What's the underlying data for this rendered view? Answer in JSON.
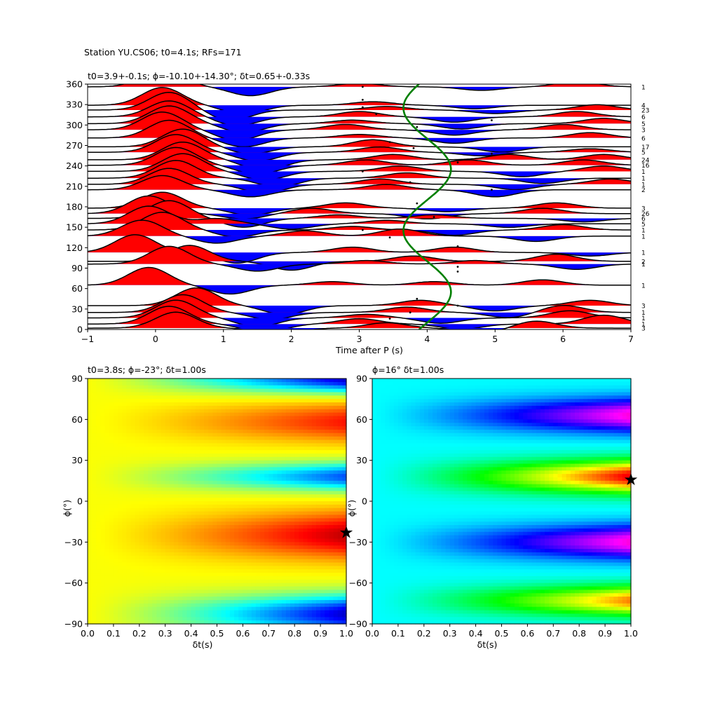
{
  "suptitle": "Station YU.CS06; t0=4.1s; RFs=171",
  "chart_data": [
    {
      "type": "line",
      "title": "t0=3.9+-0.1s; ϕ=-10.10+-14.30°; δt=0.65+-0.33s",
      "xlabel": "Time after P (s)",
      "ylabel": "",
      "xlim": [
        -1,
        7
      ],
      "ylim": [
        0,
        360
      ],
      "xticks": [
        "−1",
        "0",
        "1",
        "2",
        "3",
        "4",
        "5",
        "6",
        "7"
      ],
      "yticks": [
        "0",
        "30",
        "60",
        "90",
        "120",
        "150",
        "180",
        "210",
        "240",
        "270",
        "300",
        "330",
        "360"
      ],
      "positive_fill_color": "#ff0000",
      "negative_fill_color": "#0000ff",
      "trace_color": "#000000",
      "curve_color": "#008000",
      "traces": [
        {
          "baz": 2,
          "count": "3",
          "peaks": [
            [
              0.3,
              0.9
            ],
            [
              1.8,
              -0.4
            ],
            [
              3.4,
              0.3
            ],
            [
              4.8,
              -0.3
            ],
            [
              5.6,
              0.4
            ]
          ]
        },
        {
          "baz": 8,
          "count": "1",
          "peaks": [
            [
              0.2,
              1.0
            ],
            [
              1.6,
              -0.5
            ],
            [
              3.0,
              0.3
            ],
            [
              4.5,
              -0.3
            ],
            [
              6.6,
              0.5
            ]
          ]
        },
        {
          "baz": 17,
          "count": "1",
          "peaks": [
            [
              0.3,
              1.0
            ],
            [
              1.5,
              -0.5
            ],
            [
              3.1,
              0.2
            ],
            [
              4.2,
              -0.3
            ],
            [
              6.1,
              0.4
            ]
          ]
        },
        {
          "baz": 25,
          "count": "1",
          "peaks": [
            [
              0.4,
              1.0
            ],
            [
              1.7,
              -0.4
            ],
            [
              3.7,
              0.3
            ],
            [
              5.2,
              -0.3
            ],
            [
              6.0,
              0.4
            ]
          ]
        },
        {
          "baz": 35,
          "count": "3",
          "peaks": [
            [
              0.6,
              1.0
            ],
            [
              1.9,
              -0.5
            ],
            [
              3.9,
              0.3
            ],
            [
              5.0,
              -0.3
            ],
            [
              6.4,
              0.3
            ]
          ]
        },
        {
          "baz": 65,
          "count": "1",
          "peaks": [
            [
              -0.1,
              1.0
            ],
            [
              1.1,
              -0.5
            ],
            [
              2.6,
              0.2
            ],
            [
              4.1,
              0.2
            ],
            [
              5.7,
              0.3
            ]
          ]
        },
        {
          "baz": 96,
          "count": "1",
          "peaks": [
            [
              0.2,
              1.0
            ],
            [
              1.5,
              -0.4
            ],
            [
              3.1,
              0.2
            ],
            [
              4.7,
              0.2
            ],
            [
              6.2,
              -0.3
            ]
          ]
        },
        {
          "baz": 100,
          "count": "2",
          "peaks": [
            [
              0.5,
              0.9
            ],
            [
              2.0,
              -0.5
            ],
            [
              3.8,
              0.3
            ],
            [
              5.9,
              0.4
            ]
          ]
        },
        {
          "baz": 113,
          "count": "1",
          "peaks": [
            [
              -0.3,
              1.0
            ],
            [
              1.2,
              -0.6
            ],
            [
              2.9,
              0.3
            ],
            [
              4.4,
              0.3
            ],
            [
              6.4,
              -0.2
            ]
          ]
        },
        {
          "baz": 137,
          "count": "1",
          "peaks": [
            [
              -0.2,
              0.9
            ],
            [
              0.9,
              -0.4
            ],
            [
              2.2,
              0.3
            ],
            [
              3.6,
              0.4
            ],
            [
              5.6,
              -0.3
            ]
          ]
        },
        {
          "baz": 146,
          "count": "1",
          "peaks": [
            [
              0.1,
              1.0
            ],
            [
              1.2,
              -0.4
            ],
            [
              2.9,
              0.2
            ],
            [
              4.4,
              -0.3
            ],
            [
              6.0,
              0.3
            ]
          ]
        },
        {
          "baz": 155,
          "count": "5",
          "peaks": [
            [
              -0.1,
              1.0
            ],
            [
              0.9,
              0.3
            ],
            [
              2.0,
              -0.3
            ],
            [
              3.4,
              0.2
            ],
            [
              5.2,
              -0.2
            ]
          ]
        },
        {
          "baz": 163,
          "count": "6",
          "peaks": [
            [
              0.2,
              1.0
            ],
            [
              1.3,
              -0.5
            ],
            [
              2.7,
              0.2
            ],
            [
              4.1,
              0.2
            ],
            [
              6.3,
              -0.2
            ]
          ]
        },
        {
          "baz": 170,
          "count": "26",
          "peaks": [
            [
              -0.1,
              1.0
            ],
            [
              1.3,
              -0.3
            ],
            [
              2.3,
              0.3
            ],
            [
              4.0,
              -0.3
            ],
            [
              5.7,
              0.3
            ]
          ]
        },
        {
          "baz": 178,
          "count": "3",
          "peaks": [
            [
              0.1,
              0.9
            ],
            [
              1.4,
              -0.4
            ],
            [
              2.8,
              0.3
            ],
            [
              4.3,
              -0.2
            ],
            [
              5.9,
              0.3
            ]
          ]
        },
        {
          "baz": 205,
          "count": "2",
          "peaks": [
            [
              0.1,
              0.8
            ],
            [
              1.4,
              -0.4
            ],
            [
              3.4,
              0.3
            ],
            [
              5.0,
              -0.4
            ]
          ]
        },
        {
          "baz": 213,
          "count": "1",
          "peaks": [
            [
              0.2,
              0.9
            ],
            [
              1.6,
              -0.5
            ],
            [
              3.3,
              0.3
            ],
            [
              5.3,
              -0.3
            ],
            [
              6.7,
              0.3
            ]
          ]
        },
        {
          "baz": 222,
          "count": "1",
          "peaks": [
            [
              0.3,
              1.0
            ],
            [
              1.8,
              -0.5
            ],
            [
              3.7,
              0.3
            ],
            [
              5.7,
              -0.3
            ]
          ]
        },
        {
          "baz": 232,
          "count": "1",
          "peaks": [
            [
              0.4,
              1.0
            ],
            [
              1.6,
              -0.5
            ],
            [
              3.6,
              0.3
            ],
            [
              5.4,
              -0.3
            ],
            [
              6.6,
              0.3
            ]
          ]
        },
        {
          "baz": 241,
          "count": "16",
          "peaks": [
            [
              0.3,
              1.0
            ],
            [
              1.5,
              -0.5
            ],
            [
              3.1,
              0.3
            ],
            [
              4.6,
              0.3
            ],
            [
              6.3,
              0.3
            ]
          ]
        },
        {
          "baz": 249,
          "count": "24",
          "peaks": [
            [
              0.4,
              1.0
            ],
            [
              1.6,
              -0.6
            ],
            [
              3.5,
              0.3
            ],
            [
              5.2,
              0.3
            ],
            [
              6.6,
              0.3
            ]
          ]
        },
        {
          "baz": 260,
          "count": "5",
          "peaks": [
            [
              0.3,
              1.0
            ],
            [
              1.5,
              -0.5
            ],
            [
              3.3,
              0.3
            ],
            [
              4.8,
              -0.2
            ],
            [
              6.4,
              0.2
            ]
          ]
        },
        {
          "baz": 268,
          "count": "17",
          "peaks": [
            [
              0.4,
              1.0
            ],
            [
              1.4,
              -0.4
            ],
            [
              3.2,
              0.4
            ],
            [
              5.1,
              -0.3
            ]
          ]
        },
        {
          "baz": 281,
          "count": "6",
          "peaks": [
            [
              0.2,
              1.0
            ],
            [
              1.3,
              -0.5
            ],
            [
              3.0,
              0.2
            ],
            [
              4.4,
              -0.3
            ],
            [
              6.4,
              0.3
            ]
          ]
        },
        {
          "baz": 293,
          "count": "3",
          "peaks": [
            [
              0.1,
              1.0
            ],
            [
              1.2,
              -0.6
            ],
            [
              2.8,
              0.3
            ],
            [
              4.4,
              -0.3
            ],
            [
              6.0,
              0.3
            ]
          ]
        },
        {
          "baz": 302,
          "count": "5",
          "peaks": [
            [
              0.2,
              1.0
            ],
            [
              1.3,
              -0.5
            ],
            [
              2.9,
              0.2
            ],
            [
              4.5,
              -0.3
            ],
            [
              6.6,
              0.3
            ]
          ]
        },
        {
          "baz": 312,
          "count": "6",
          "peaks": [
            [
              0.2,
              0.9
            ],
            [
              1.2,
              -0.5
            ],
            [
              3.0,
              0.3
            ],
            [
              4.4,
              -0.3
            ],
            [
              6.2,
              0.3
            ]
          ]
        },
        {
          "baz": 322,
          "count": "23",
          "peaks": [
            [
              0.2,
              1.0
            ],
            [
              1.1,
              -0.6
            ],
            [
              3.4,
              0.2
            ],
            [
              5.0,
              -0.2
            ],
            [
              6.5,
              0.3
            ]
          ]
        },
        {
          "baz": 329,
          "count": "4",
          "peaks": [
            [
              0.1,
              1.0
            ],
            [
              1.3,
              -0.5
            ],
            [
              3.2,
              0.2
            ],
            [
              4.7,
              -0.2
            ]
          ]
        },
        {
          "baz": 356,
          "count": "1",
          "peaks": [
            [
              0.1,
              1.0
            ],
            [
              1.4,
              -0.5
            ],
            [
              3.0,
              0.2
            ],
            [
              4.8,
              -0.2
            ],
            [
              6.2,
              0.3
            ]
          ]
        }
      ],
      "markers": [
        [
          3.05,
          356
        ],
        [
          3.05,
          337
        ],
        [
          3.05,
          326
        ],
        [
          3.25,
          316
        ],
        [
          3.85,
          297
        ],
        [
          4.95,
          307
        ],
        [
          3.45,
          275
        ],
        [
          3.8,
          266
        ],
        [
          4.45,
          245
        ],
        [
          4.95,
          258
        ],
        [
          3.05,
          232
        ],
        [
          3.75,
          216
        ],
        [
          4.95,
          205
        ],
        [
          3.85,
          185
        ],
        [
          4.1,
          165
        ],
        [
          3.05,
          146
        ],
        [
          3.45,
          135
        ],
        [
          4.45,
          122
        ],
        [
          4.45,
          92
        ],
        [
          4.45,
          85
        ],
        [
          3.85,
          45
        ],
        [
          4.45,
          35
        ],
        [
          3.75,
          25
        ],
        [
          3.45,
          16
        ]
      ],
      "green_curve": {
        "t_center": 4.0,
        "amplitude": 0.35,
        "period_deg": 180,
        "phase_deg": 10
      }
    },
    {
      "type": "heatmap",
      "title": "t0=3.8s; ϕ=-23°; δt=1.00s",
      "xlabel": "δt(s)",
      "ylabel": "ϕ(°)",
      "xlim": [
        0.0,
        1.0
      ],
      "ylim": [
        -90,
        90
      ],
      "xticks": [
        "0.0",
        "0.1",
        "0.2",
        "0.3",
        "0.4",
        "0.5",
        "0.6",
        "0.7",
        "0.8",
        "0.9",
        "1.0"
      ],
      "yticks": [
        "−90",
        "−60",
        "−30",
        "0",
        "30",
        "60",
        "90"
      ],
      "colormap": "jet",
      "best": {
        "dt": 1.0,
        "phi": -23
      },
      "field": {
        "base": 0.62,
        "terms": [
          {
            "phi0": -25,
            "sigma": 17,
            "amp": 0.32
          },
          {
            "phi0": 58,
            "sigma": 14,
            "amp": 0.24
          },
          {
            "phi0": 18,
            "sigma": 10,
            "amp": -0.42
          },
          {
            "phi0": -83,
            "sigma": 14,
            "amp": -0.55
          },
          {
            "phi0": 90,
            "sigma": 10,
            "amp": -0.55
          }
        ]
      }
    },
    {
      "type": "heatmap",
      "title": "ϕ=16° δt=1.00s",
      "xlabel": "δt(s)",
      "ylabel": "ϕ(°)",
      "xlim": [
        0.0,
        1.0
      ],
      "ylim": [
        -90,
        90
      ],
      "xticks": [
        "0.0",
        "0.1",
        "0.2",
        "0.3",
        "0.4",
        "0.5",
        "0.6",
        "0.7",
        "0.8",
        "0.9",
        "1.0"
      ],
      "yticks": [
        "−90",
        "−60",
        "−30",
        "0",
        "30",
        "60",
        "90"
      ],
      "colormap": "hsv",
      "best": {
        "dt": 1.0,
        "phi": 16
      },
      "field": {
        "base": 0.5,
        "terms": [
          {
            "phi0": 18,
            "sigma": 12,
            "amp": -0.52
          },
          {
            "phi0": -73,
            "sigma": 11,
            "amp": -0.42
          },
          {
            "phi0": 63,
            "sigma": 12,
            "amp": 0.36
          },
          {
            "phi0": -30,
            "sigma": 12,
            "amp": 0.36
          }
        ]
      }
    }
  ]
}
